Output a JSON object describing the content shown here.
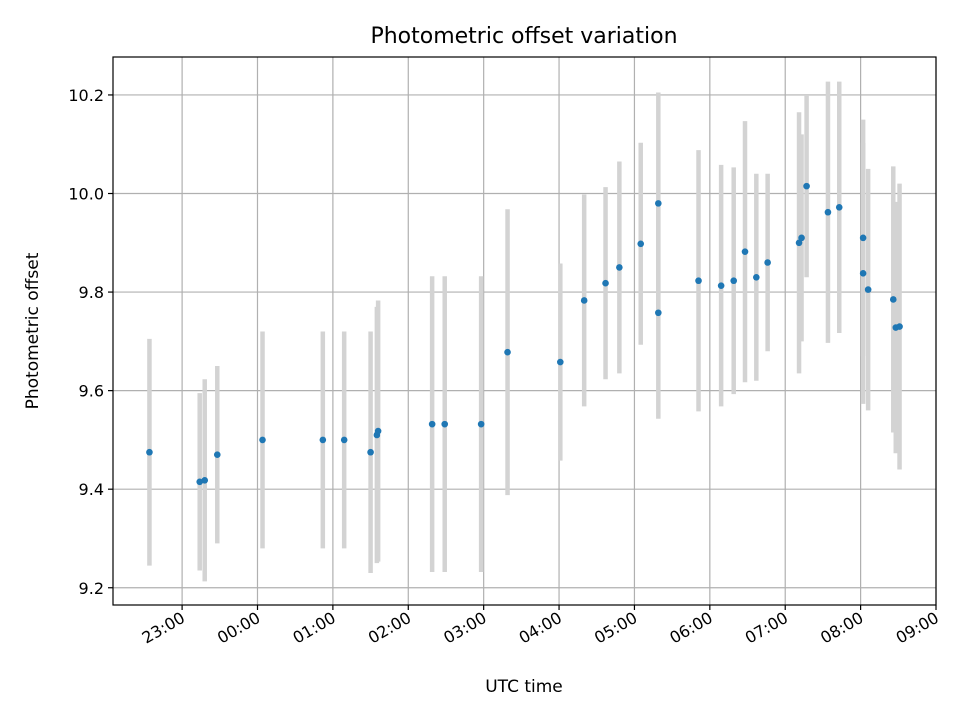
{
  "chart_data": {
    "type": "scatter",
    "title": "Photometric offset variation",
    "xlabel": "UTC time",
    "ylabel": "Photometric offset",
    "x_tick_labels": [
      "23:00",
      "00:00",
      "01:00",
      "02:00",
      "03:00",
      "04:00",
      "05:00",
      "06:00",
      "07:00",
      "08:00",
      "09:00"
    ],
    "x_tick_minutes": [
      1380,
      1440,
      1500,
      1560,
      1620,
      1680,
      1740,
      1800,
      1860,
      1920,
      1980
    ],
    "xlim_minutes": [
      1325,
      1980
    ],
    "y_ticks": [
      9.2,
      9.4,
      9.6,
      9.8,
      10.0,
      10.2
    ],
    "y_tick_labels": [
      "9.2",
      "9.4",
      "9.6",
      "9.8",
      "10.0",
      "10.2"
    ],
    "ylim": [
      9.165,
      10.277
    ],
    "grid": true,
    "colors": {
      "points": "#1f77b4",
      "errorbars": "#d3d3d3",
      "grid": "#b0b0b0"
    },
    "points": [
      {
        "t": 1354,
        "y": 9.475,
        "err": 0.23
      },
      {
        "t": 1394,
        "y": 9.415,
        "err": 0.18
      },
      {
        "t": 1398,
        "y": 9.418,
        "err": 0.205
      },
      {
        "t": 1408,
        "y": 9.47,
        "err": 0.18
      },
      {
        "t": 1444,
        "y": 9.5,
        "err": 0.22
      },
      {
        "t": 1492,
        "y": 9.5,
        "err": 0.22
      },
      {
        "t": 1509,
        "y": 9.5,
        "err": 0.22
      },
      {
        "t": 1530,
        "y": 9.475,
        "err": 0.245
      },
      {
        "t": 1535,
        "y": 9.51,
        "err": 0.26
      },
      {
        "t": 1536,
        "y": 9.518,
        "err": 0.265
      },
      {
        "t": 1579,
        "y": 9.532,
        "err": 0.3
      },
      {
        "t": 1589,
        "y": 9.532,
        "err": 0.3
      },
      {
        "t": 1618,
        "y": 9.532,
        "err": 0.3
      },
      {
        "t": 1639,
        "y": 9.678,
        "err": 0.29
      },
      {
        "t": 1681,
        "y": 9.658,
        "err": 0.2
      },
      {
        "t": 1700,
        "y": 9.783,
        "err": 0.215
      },
      {
        "t": 1717,
        "y": 9.818,
        "err": 0.195
      },
      {
        "t": 1728,
        "y": 9.85,
        "err": 0.215
      },
      {
        "t": 1745,
        "y": 9.898,
        "err": 0.205
      },
      {
        "t": 1759,
        "y": 9.98,
        "err": 0.225
      },
      {
        "t": 1759,
        "y": 9.758,
        "err": 0.215
      },
      {
        "t": 1791,
        "y": 9.823,
        "err": 0.265
      },
      {
        "t": 1809,
        "y": 9.813,
        "err": 0.245
      },
      {
        "t": 1819,
        "y": 9.823,
        "err": 0.23
      },
      {
        "t": 1828,
        "y": 9.882,
        "err": 0.265
      },
      {
        "t": 1837,
        "y": 9.83,
        "err": 0.21
      },
      {
        "t": 1846,
        "y": 9.86,
        "err": 0.18
      },
      {
        "t": 1871,
        "y": 9.9,
        "err": 0.265
      },
      {
        "t": 1873,
        "y": 9.91,
        "err": 0.21
      },
      {
        "t": 1877,
        "y": 10.015,
        "err": 0.185
      },
      {
        "t": 1894,
        "y": 9.962,
        "err": 0.265
      },
      {
        "t": 1903,
        "y": 9.972,
        "err": 0.255
      },
      {
        "t": 1922,
        "y": 9.91,
        "err": 0.24
      },
      {
        "t": 1922,
        "y": 9.838,
        "err": 0.265
      },
      {
        "t": 1926,
        "y": 9.805,
        "err": 0.245
      },
      {
        "t": 1946,
        "y": 9.785,
        "err": 0.27
      },
      {
        "t": 1948,
        "y": 9.728,
        "err": 0.255
      },
      {
        "t": 1951,
        "y": 9.73,
        "err": 0.29
      }
    ]
  }
}
